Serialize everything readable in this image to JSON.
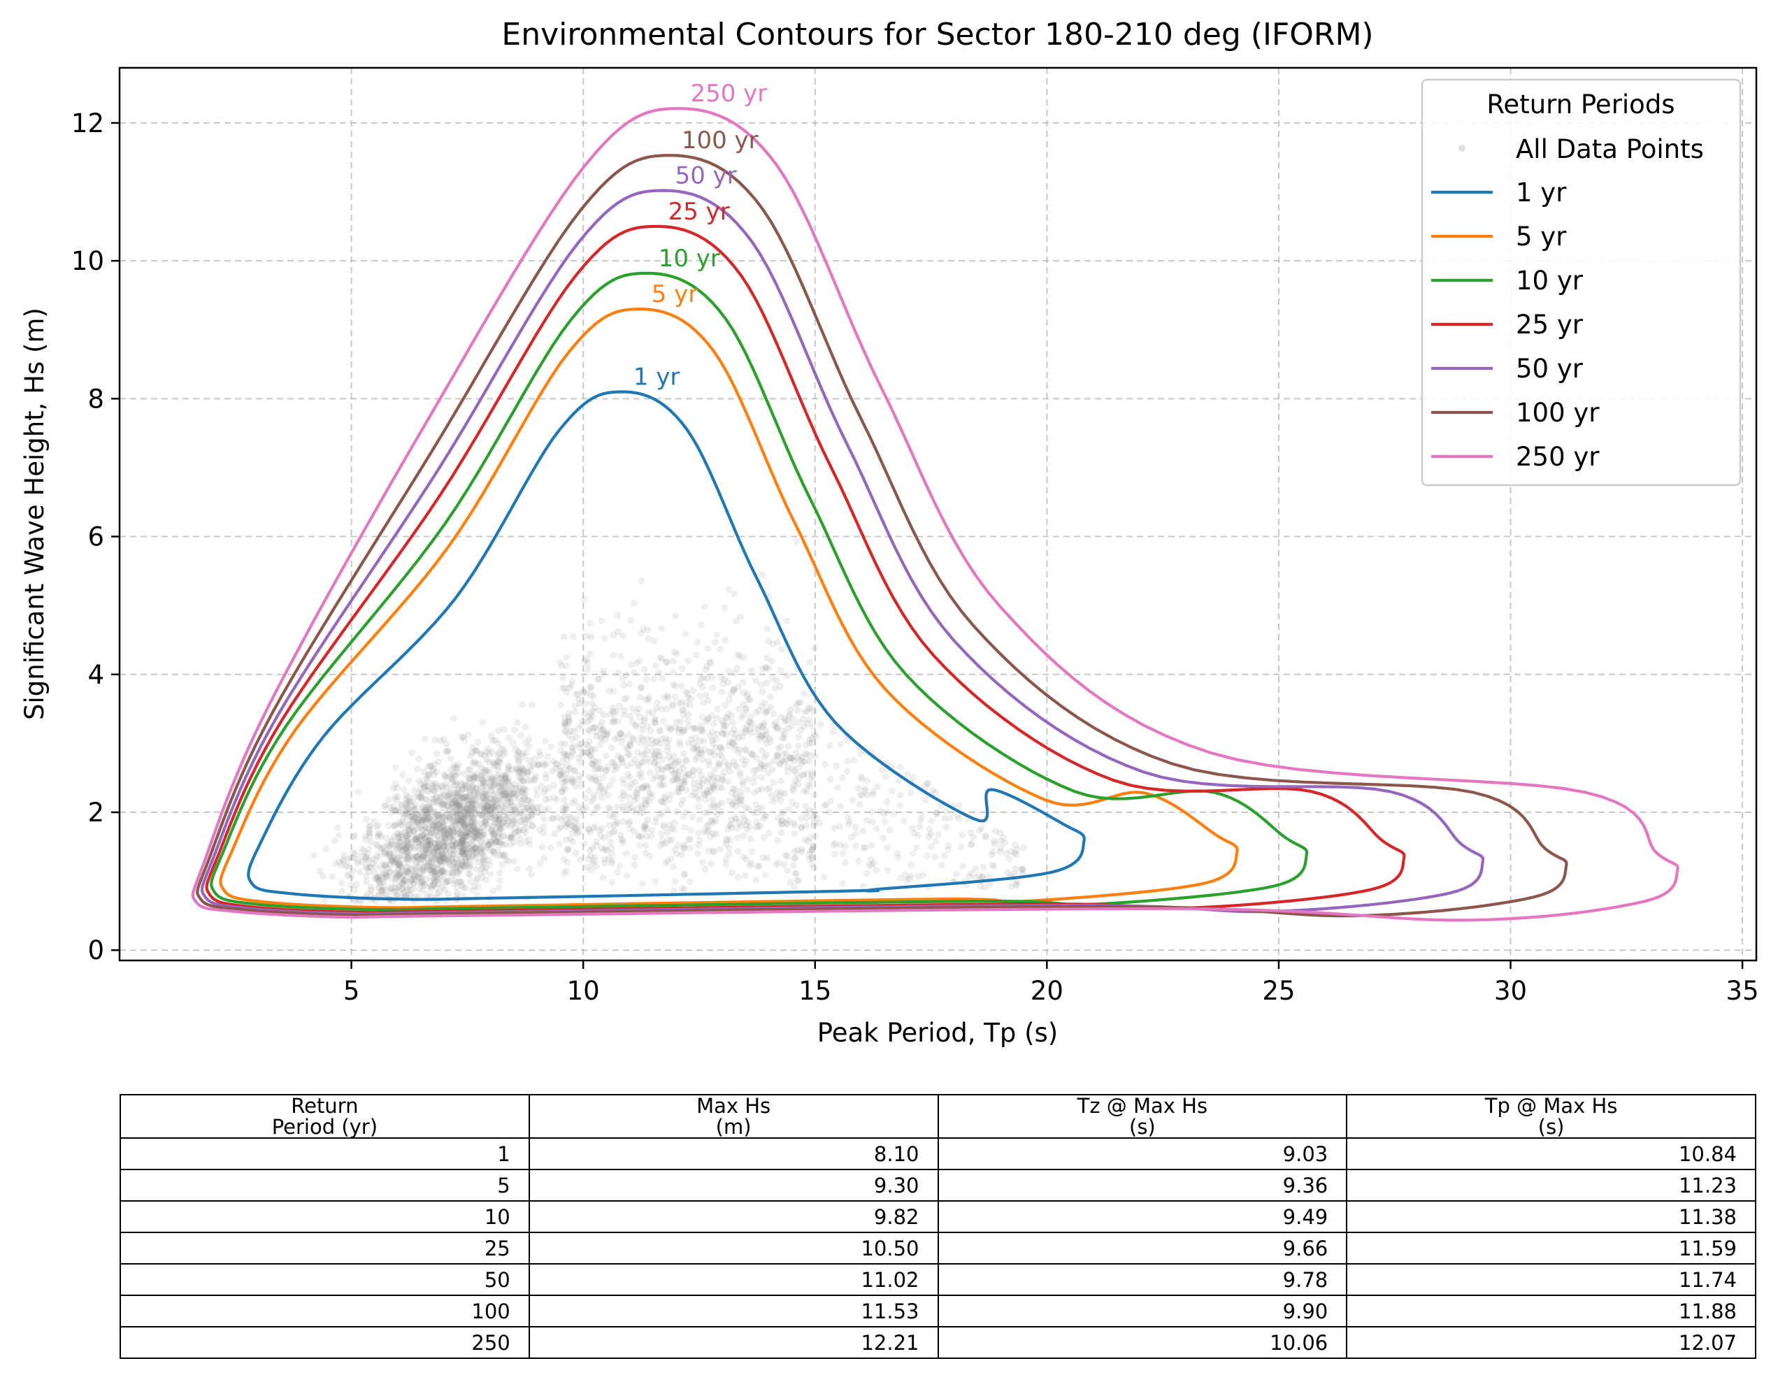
{
  "chart_data": {
    "type": "line",
    "title": "Environmental Contours for Sector 180-210 deg (IFORM)",
    "xlabel": "Peak Period, Tp (s)",
    "ylabel": "Significant Wave Height, Hs (m)",
    "xlim": [
      0,
      35.3
    ],
    "ylim": [
      -0.15,
      12.8
    ],
    "xticks": [
      "5",
      "10",
      "15",
      "20",
      "25",
      "30",
      "35"
    ],
    "yticks": [
      "0",
      "2",
      "4",
      "6",
      "8",
      "10",
      "12"
    ],
    "grid": true,
    "legend": {
      "title": "Return Periods",
      "placement": "upper right",
      "scatter_label": "All Data Points"
    },
    "series": [
      {
        "name": "1 yr",
        "color": "#1f77b4",
        "peak_tp": 10.84,
        "max_hs": 8.1,
        "max_tp": 20.8,
        "hs_at_max_tp": 1.58,
        "min_tp": 2.8,
        "hs_at_min_tp": 1.15,
        "min_hs": 0.74,
        "tp_at_min_hs": 6.0
      },
      {
        "name": "5 yr",
        "color": "#ff7f0e",
        "peak_tp": 11.23,
        "max_hs": 9.3,
        "max_tp": 24.1,
        "hs_at_max_tp": 1.42,
        "min_tp": 2.2,
        "hs_at_min_tp": 1.05,
        "min_hs": 0.62,
        "tp_at_min_hs": 5.5
      },
      {
        "name": "10 yr",
        "color": "#2ca02c",
        "peak_tp": 11.38,
        "max_hs": 9.82,
        "max_tp": 25.6,
        "hs_at_max_tp": 1.38,
        "min_tp": 2.0,
        "hs_at_min_tp": 1.02,
        "min_hs": 0.59,
        "tp_at_min_hs": 5.3
      },
      {
        "name": "25 yr",
        "color": "#d62728",
        "peak_tp": 11.59,
        "max_hs": 10.5,
        "max_tp": 27.7,
        "hs_at_max_tp": 1.33,
        "min_tp": 1.9,
        "hs_at_min_tp": 0.98,
        "min_hs": 0.55,
        "tp_at_min_hs": 5.1
      },
      {
        "name": "50 yr",
        "color": "#9467bd",
        "peak_tp": 11.74,
        "max_hs": 11.02,
        "max_tp": 29.4,
        "hs_at_max_tp": 1.28,
        "min_tp": 1.8,
        "hs_at_min_tp": 0.95,
        "min_hs": 0.53,
        "tp_at_min_hs": 5.0
      },
      {
        "name": "100 yr",
        "color": "#8c564b",
        "peak_tp": 11.88,
        "max_hs": 11.53,
        "max_tp": 31.2,
        "hs_at_max_tp": 1.22,
        "min_tp": 1.7,
        "hs_at_min_tp": 0.92,
        "min_hs": 0.51,
        "tp_at_min_hs": 4.9
      },
      {
        "name": "250 yr",
        "color": "#e377c2",
        "peak_tp": 12.07,
        "max_hs": 12.21,
        "max_tp": 33.6,
        "hs_at_max_tp": 1.16,
        "min_tp": 1.6,
        "hs_at_min_tp": 0.88,
        "min_hs": 0.48,
        "tp_at_min_hs": 4.8
      }
    ],
    "scatter_color": "#808080"
  },
  "table": {
    "headers": [
      "Return\nPeriod (yr)",
      "Max Hs\n(m)",
      "Tz @ Max Hs\n(s)",
      "Tp @ Max Hs\n(s)"
    ],
    "rows": [
      [
        "1",
        "8.10",
        "9.03",
        "10.84"
      ],
      [
        "5",
        "9.30",
        "9.36",
        "11.23"
      ],
      [
        "10",
        "9.82",
        "9.49",
        "11.38"
      ],
      [
        "25",
        "10.50",
        "9.66",
        "11.59"
      ],
      [
        "50",
        "11.02",
        "9.78",
        "11.74"
      ],
      [
        "100",
        "11.53",
        "9.90",
        "11.88"
      ],
      [
        "250",
        "12.21",
        "10.06",
        "12.07"
      ]
    ]
  }
}
